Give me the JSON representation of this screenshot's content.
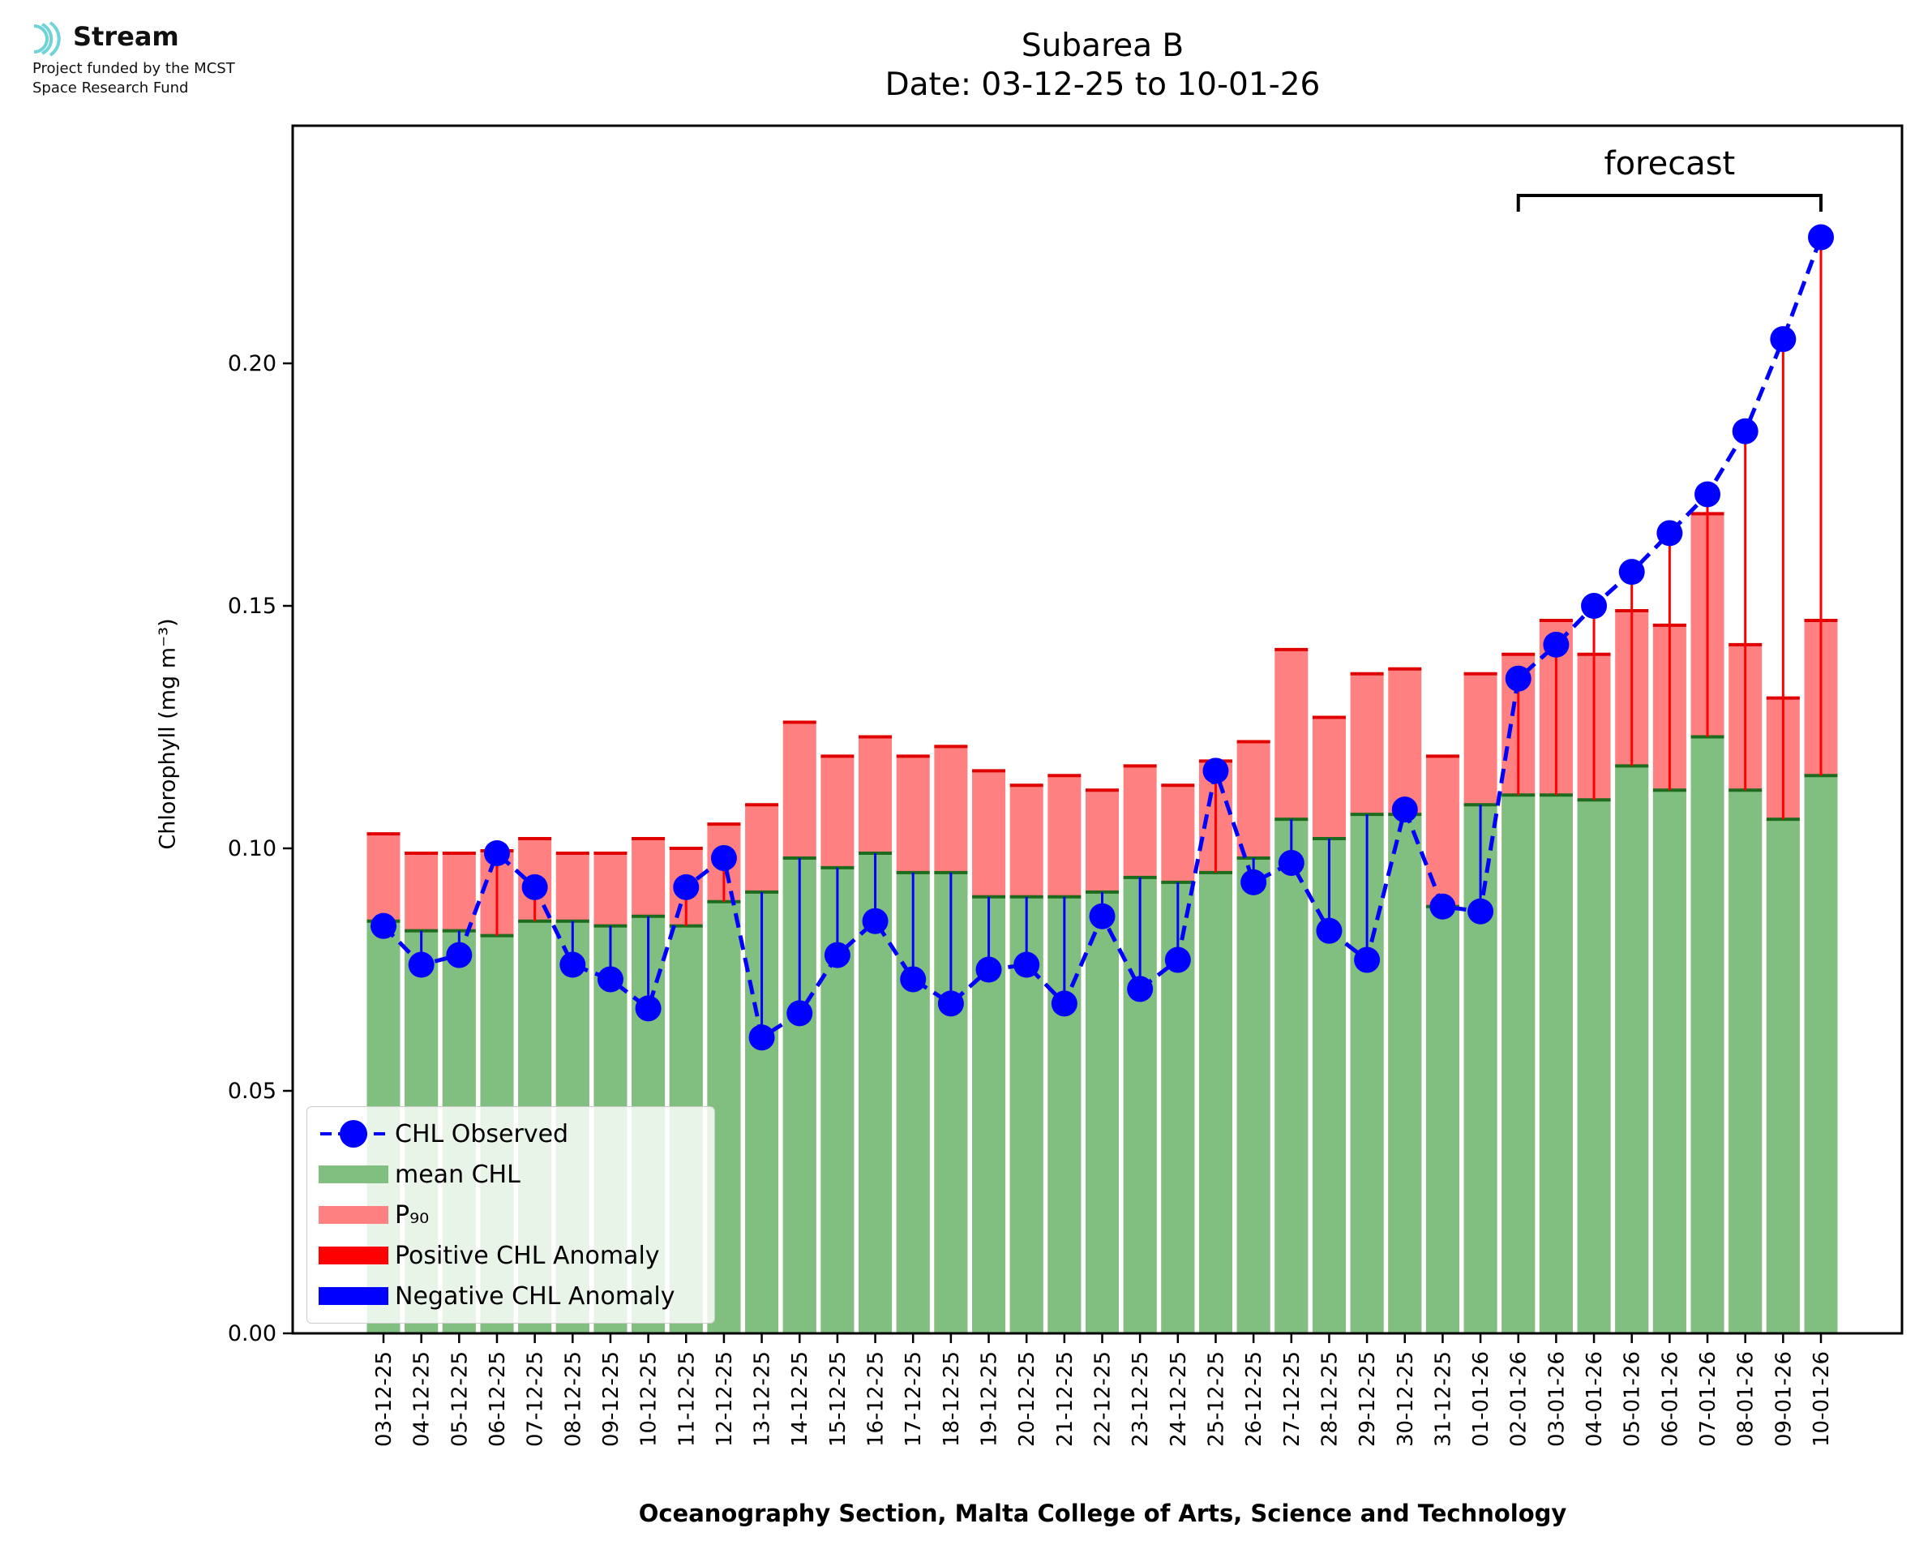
{
  "logo": {
    "name": "Stream",
    "line1": "Project funded by the MCST",
    "line2": "Space Research Fund",
    "color": "#6fd3d8"
  },
  "chart_data": {
    "type": "bar",
    "title": "Subarea B",
    "subtitle": "Date: 03-12-25 to 10-01-26",
    "ylabel": "Chlorophyll (mg m⁻³)",
    "xlabel": "Oceanography Section, Malta College of Arts, Science and Technology",
    "ylim": [
      0,
      0.249
    ],
    "yticks": [
      "0.00",
      "0.05",
      "0.10",
      "0.15",
      "0.20"
    ],
    "grid": false,
    "legend_position": "lower-left",
    "categories": [
      "03-12-25",
      "04-12-25",
      "05-12-25",
      "06-12-25",
      "07-12-25",
      "08-12-25",
      "09-12-25",
      "10-12-25",
      "11-12-25",
      "12-12-25",
      "13-12-25",
      "14-12-25",
      "15-12-25",
      "16-12-25",
      "17-12-25",
      "18-12-25",
      "19-12-25",
      "20-12-25",
      "21-12-25",
      "22-12-25",
      "23-12-25",
      "24-12-25",
      "25-12-25",
      "26-12-25",
      "27-12-25",
      "28-12-25",
      "29-12-25",
      "30-12-25",
      "31-12-25",
      "01-01-26",
      "02-01-26",
      "03-01-26",
      "04-01-26",
      "05-01-26",
      "06-01-26",
      "07-01-26",
      "08-01-26",
      "09-01-26",
      "10-01-26"
    ],
    "series": [
      {
        "name": "CHL Observed",
        "type": "line",
        "style": "dashed",
        "marker": "circle",
        "color": "#0000ff",
        "values": [
          0.084,
          0.076,
          0.078,
          0.099,
          0.092,
          0.076,
          0.073,
          0.067,
          0.092,
          0.098,
          0.061,
          0.066,
          0.078,
          0.085,
          0.073,
          0.068,
          0.075,
          0.076,
          0.068,
          0.086,
          0.071,
          0.077,
          0.116,
          0.093,
          0.097,
          0.083,
          0.077,
          0.108,
          0.088,
          0.087,
          0.135,
          0.142,
          0.15,
          0.157,
          0.165,
          0.173,
          0.186,
          0.205,
          0.226
        ]
      },
      {
        "name": "mean CHL",
        "type": "bar",
        "color": "#80bf80",
        "values": [
          0.085,
          0.083,
          0.083,
          0.082,
          0.085,
          0.085,
          0.084,
          0.086,
          0.084,
          0.089,
          0.091,
          0.098,
          0.096,
          0.099,
          0.095,
          0.095,
          0.09,
          0.09,
          0.09,
          0.091,
          0.094,
          0.093,
          0.095,
          0.098,
          0.106,
          0.102,
          0.107,
          0.107,
          0.088,
          0.109,
          0.111,
          0.111,
          0.11,
          0.117,
          0.112,
          0.123,
          0.112,
          0.106,
          0.115
        ]
      },
      {
        "name": "P₉₀",
        "type": "bar",
        "color": "#ff8080",
        "values": [
          0.103,
          0.099,
          0.099,
          0.0995,
          0.102,
          0.099,
          0.099,
          0.102,
          0.1,
          0.105,
          0.109,
          0.126,
          0.119,
          0.123,
          0.119,
          0.121,
          0.116,
          0.113,
          0.115,
          0.112,
          0.117,
          0.113,
          0.118,
          0.122,
          0.141,
          0.127,
          0.136,
          0.137,
          0.119,
          0.136,
          0.14,
          0.147,
          0.14,
          0.149,
          0.146,
          0.169,
          0.142,
          0.131,
          0.147
        ]
      },
      {
        "name": "Positive CHL Anomaly",
        "color": "#ff0000"
      },
      {
        "name": "Negative CHL Anomaly",
        "color": "#0000ff"
      }
    ],
    "forecast": {
      "label": "forecast",
      "from": "02-01-26",
      "to": "10-01-26"
    }
  }
}
